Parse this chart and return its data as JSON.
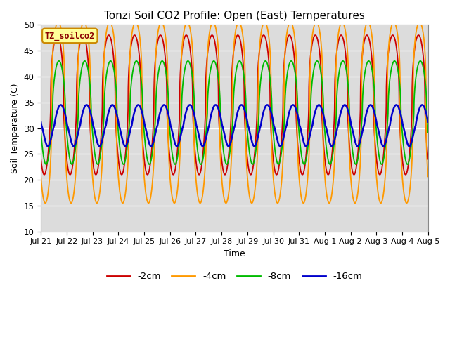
{
  "title": "Tonzi Soil CO2 Profile: Open (East) Temperatures",
  "xlabel": "Time",
  "ylabel": "Soil Temperature (C)",
  "ylim": [
    10,
    50
  ],
  "background_color": "#dcdcdc",
  "grid_color": "white",
  "legend_box_label": "TZ_soilco2",
  "x_tick_labels": [
    "Jul 21",
    "Jul 22",
    "Jul 23",
    "Jul 24",
    "Jul 25",
    "Jul 26",
    "Jul 27",
    "Jul 28",
    "Jul 29",
    "Jul 30",
    "Jul 31",
    "Aug 1",
    "Aug 2",
    "Aug 3",
    "Aug 4",
    "Aug 5"
  ],
  "series": [
    {
      "label": "-2cm",
      "color": "#cc0000",
      "mean": 34.5,
      "amplitude": 13.5,
      "phase_shift": 0.38,
      "sharpness": 2.5,
      "linewidth": 1.3
    },
    {
      "label": "-4cm",
      "color": "#ff9900",
      "mean": 33.0,
      "amplitude": 17.5,
      "phase_shift": 0.42,
      "sharpness": 3.5,
      "linewidth": 1.3
    },
    {
      "label": "-8cm",
      "color": "#00bb00",
      "mean": 33.0,
      "amplitude": 10.0,
      "phase_shift": 0.45,
      "sharpness": 2.0,
      "linewidth": 1.3
    },
    {
      "label": "-16cm",
      "color": "#0000cc",
      "mean": 30.5,
      "amplitude": 4.0,
      "phase_shift": 0.52,
      "sharpness": 1.2,
      "linewidth": 1.8
    }
  ],
  "figsize": [
    6.4,
    4.8
  ],
  "dpi": 100
}
